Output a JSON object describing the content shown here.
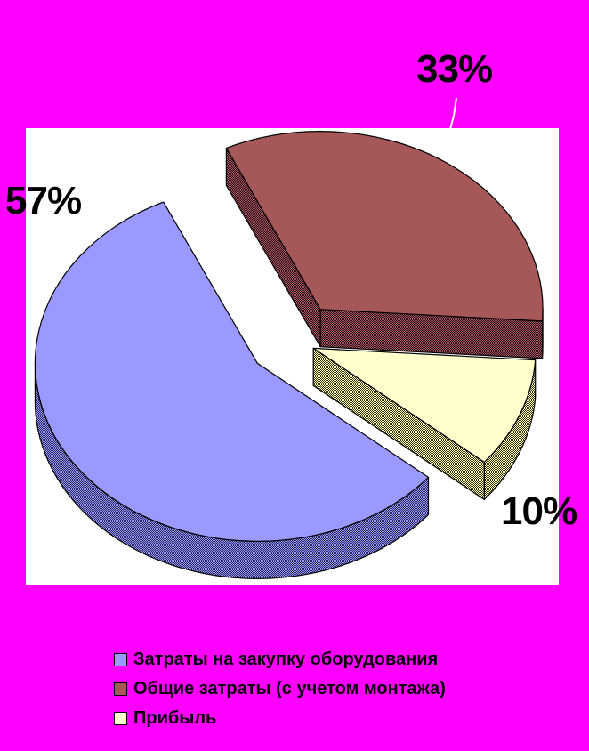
{
  "background_color": "#FF00FF",
  "plot_area_color": "#FFFFFF",
  "chart_data": {
    "type": "pie",
    "style": "3d-exploded",
    "title": "",
    "legend_position": "bottom-left",
    "data_labels": "outside-percent",
    "slices": [
      {
        "label": "Затраты на закупку оборудования",
        "value": 57,
        "data_label": "57%",
        "color": "#9999FF",
        "side_color": "#26265A"
      },
      {
        "label": "Общие затраты (с учетом монтажа)",
        "value": 33,
        "data_label": "33%",
        "color": "#A65757",
        "side_color": "#2A0A1E"
      },
      {
        "label": "Прибыль",
        "value": 10,
        "data_label": "10%",
        "color": "#FFFFCC",
        "side_color": "#333300"
      }
    ]
  }
}
